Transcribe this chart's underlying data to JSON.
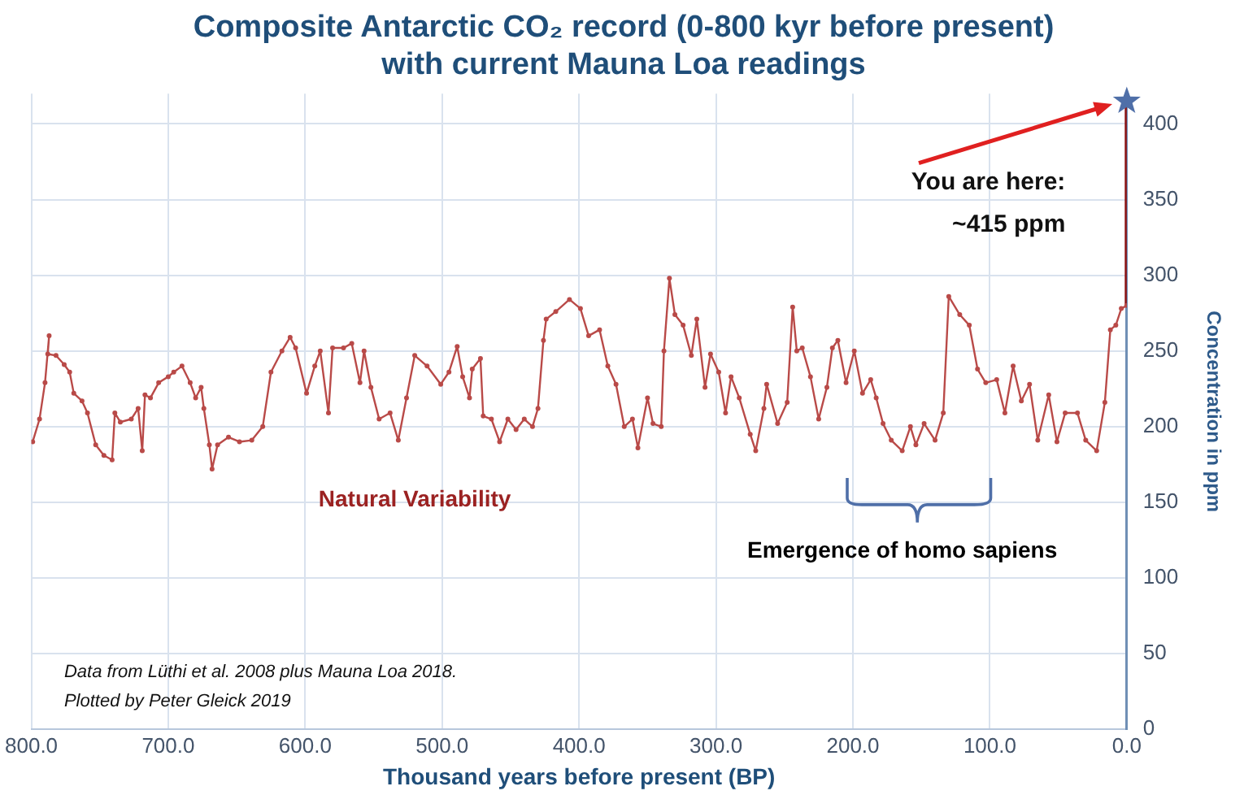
{
  "chart_data": {
    "type": "line",
    "title": "Composite Antarctic CO₂ record (0-800 kyr before present)\nwith current Mauna Loa readings",
    "xlabel": "Thousand years before present (BP)",
    "ylabel": "Concentration in ppm",
    "xlim": [
      800,
      0
    ],
    "xticks": [
      {
        "value": 800,
        "label": "800.0"
      },
      {
        "value": 700,
        "label": "700.0"
      },
      {
        "value": 600,
        "label": "600.0"
      },
      {
        "value": 500,
        "label": "500.0"
      },
      {
        "value": 400,
        "label": "400.0"
      },
      {
        "value": 300,
        "label": "300.0"
      },
      {
        "value": 200,
        "label": "200.0"
      },
      {
        "value": 100,
        "label": "100.0"
      },
      {
        "value": 0,
        "label": "0.0"
      }
    ],
    "ylim": [
      0,
      420
    ],
    "yticks": [
      0,
      50,
      100,
      150,
      200,
      250,
      300,
      350,
      400
    ],
    "grid": true,
    "legend": false,
    "annotations": [
      "Natural Variability",
      "Emergence of homo sapiens",
      "You are here:\n~415 ppm",
      "Data from Lüthi et al. 2008 plus Mauna Loa 2018.\nPlotted by Peter Gleick 2019"
    ],
    "series": [
      {
        "color": "#b94a48",
        "marker": "circle",
        "x": [
          799,
          794,
          790,
          787,
          788,
          782,
          776,
          772,
          769,
          763,
          759,
          753,
          747,
          741,
          739,
          735,
          727,
          722,
          719,
          717,
          713,
          707,
          700,
          696,
          690,
          684,
          680,
          676,
          674,
          670,
          668,
          664,
          656,
          648,
          639,
          631,
          625,
          617,
          611,
          607,
          599,
          593,
          589,
          583,
          580,
          572,
          566,
          560,
          557,
          552,
          546,
          538,
          532,
          526,
          520,
          511,
          501,
          495,
          489,
          485,
          480,
          478,
          472,
          470,
          464,
          458,
          452,
          446,
          440,
          434,
          430,
          426,
          424,
          417,
          407,
          399,
          393,
          385,
          379,
          373,
          367,
          361,
          357,
          350,
          346,
          340,
          338,
          334,
          330,
          324,
          318,
          314,
          308,
          304,
          298,
          293,
          289,
          283,
          275,
          271,
          265,
          263,
          255,
          248,
          244,
          241,
          237,
          231,
          225,
          219,
          215,
          211,
          205,
          199,
          193,
          187,
          183,
          178,
          172,
          164,
          158,
          154,
          148,
          140,
          134,
          130,
          122,
          115,
          109,
          103,
          95,
          89,
          83,
          77,
          71,
          65,
          57,
          51,
          45,
          36,
          30,
          22,
          16,
          12,
          8,
          4,
          0
        ],
        "values": [
          190,
          205,
          229,
          260,
          248,
          247,
          241,
          236,
          222,
          217,
          209,
          188,
          181,
          178,
          209,
          203,
          205,
          212,
          184,
          221,
          219,
          229,
          233,
          236,
          240,
          229,
          219,
          226,
          212,
          188,
          172,
          188,
          193,
          190,
          191,
          200,
          236,
          250,
          259,
          252,
          222,
          240,
          250,
          209,
          252,
          252,
          255,
          229,
          250,
          226,
          205,
          209,
          191,
          219,
          247,
          240,
          228,
          236,
          253,
          233,
          219,
          238,
          245,
          207,
          205,
          190,
          205,
          198,
          205,
          200,
          212,
          257,
          271,
          276,
          284,
          278,
          260,
          264,
          240,
          228,
          200,
          205,
          186,
          219,
          202,
          200,
          250,
          298,
          274,
          267,
          247,
          271,
          226,
          248,
          236,
          209,
          233,
          219,
          195,
          184,
          212,
          228,
          202,
          216,
          279,
          250,
          252,
          233,
          205,
          226,
          252,
          257,
          229,
          250,
          222,
          231,
          219,
          202,
          191,
          184,
          200,
          188,
          202,
          191,
          209,
          286,
          274,
          267,
          238,
          229,
          231,
          209,
          240,
          217,
          228,
          191,
          221,
          190,
          209,
          209,
          191,
          184,
          216,
          264,
          267,
          278,
          280
        ]
      },
      {
        "color": "#8b1010",
        "marker": "none",
        "x": [
          0,
          0
        ],
        "values": [
          280,
          415
        ]
      },
      {
        "type": "scatter",
        "color": "#4f6fa8",
        "marker": "star",
        "x": [
          0
        ],
        "values": [
          415
        ]
      }
    ]
  }
}
